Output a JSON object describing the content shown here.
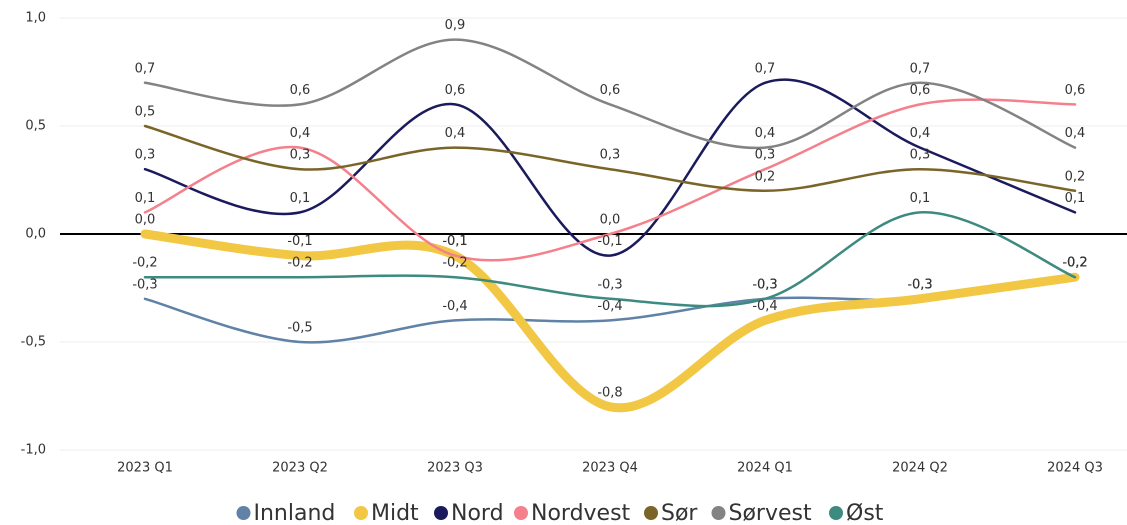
{
  "chart_data": {
    "type": "line",
    "categories": [
      "2023 Q1",
      "2023 Q2",
      "2023 Q3",
      "2023 Q4",
      "2024 Q1",
      "2024 Q2",
      "2024 Q3"
    ],
    "ylim": [
      -1.0,
      1.0
    ],
    "yticks": [
      {
        "value": -1.0,
        "label": "-1,0"
      },
      {
        "value": -0.5,
        "label": "-0,5"
      },
      {
        "value": 0.0,
        "label": "0,0"
      },
      {
        "value": 0.5,
        "label": "0,5"
      },
      {
        "value": 1.0,
        "label": "1,0"
      }
    ],
    "grid": true,
    "legend": "bottom",
    "series": [
      {
        "name": "Innland",
        "color": "#5f82a6",
        "values": [
          -0.3,
          -0.5,
          -0.4,
          -0.4,
          -0.3,
          -0.3,
          -0.2
        ],
        "value_labels": [
          "-0,3",
          "-0,5",
          "-0,4",
          "-0,4",
          "-0,3",
          "-0,3",
          "-0,2"
        ]
      },
      {
        "name": "Midt",
        "color": "#f2c744",
        "values": [
          0.0,
          -0.1,
          -0.1,
          -0.8,
          -0.4,
          -0.3,
          -0.2
        ],
        "value_labels": [
          "0,0",
          "-0,1",
          "-0,1",
          "-0,8",
          "-0,4",
          "-0,3",
          "-0,2"
        ]
      },
      {
        "name": "Nord",
        "color": "#1b1a5c",
        "values": [
          0.3,
          0.1,
          0.6,
          -0.1,
          0.7,
          0.4,
          0.1
        ],
        "value_labels": [
          "0,3",
          "0,1",
          "0,6",
          "-0,1",
          "0,7",
          "0,4",
          "0,1"
        ]
      },
      {
        "name": "Nordvest",
        "color": "#f4808b",
        "values": [
          0.1,
          0.4,
          -0.1,
          0.0,
          0.3,
          0.6,
          0.6
        ],
        "value_labels": [
          "0,1",
          "0,4",
          "-0,1",
          "0,0",
          "0,3",
          "0,6",
          "0,6"
        ]
      },
      {
        "name": "Sør",
        "color": "#7a6428",
        "values": [
          0.5,
          0.3,
          0.4,
          0.3,
          0.2,
          0.3,
          0.2
        ],
        "value_labels": [
          "0,5",
          "0,3",
          "0,4",
          "0,3",
          "0,2",
          "0,3",
          "0,2"
        ]
      },
      {
        "name": "Sørvest",
        "color": "#838383",
        "values": [
          0.7,
          0.6,
          0.9,
          0.6,
          0.4,
          0.7,
          0.4
        ],
        "value_labels": [
          "0,7",
          "0,6",
          "0,9",
          "0,6",
          "0,4",
          "0,7",
          "0,4"
        ]
      },
      {
        "name": "Øst",
        "color": "#3d8a80",
        "values": [
          -0.2,
          -0.2,
          -0.2,
          -0.3,
          -0.3,
          0.1,
          -0.2
        ],
        "value_labels": [
          "-0,2",
          "-0,2",
          "-0,2",
          "-0,3",
          "-0,3",
          "0,1",
          "-0,2"
        ]
      }
    ]
  }
}
